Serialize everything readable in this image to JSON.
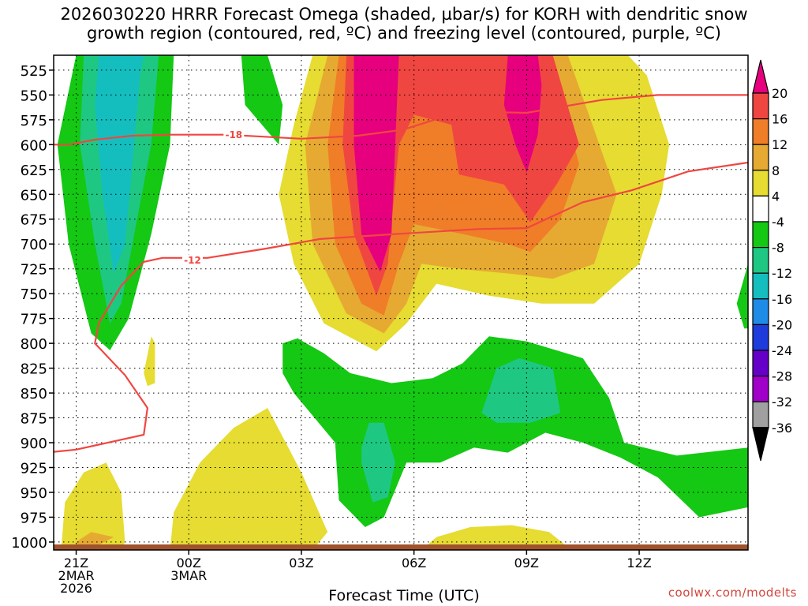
{
  "chart_data": {
    "type": "heatmap",
    "title_line1": "2026030220 HRRR Forecast Omega (shaded, µbar/s) for KORH with dendritic snow",
    "title_line2": "growth region (contoured, red, ºC) and freezing level (contoured, purple, ºC)",
    "xlabel": "Forecast Time (UTC)",
    "credit": "coolwx.com/modelts",
    "x_range_hours": [
      -0.6,
      17.9
    ],
    "y_range_hPa": [
      510,
      1008
    ],
    "y_ticks": [
      525,
      550,
      575,
      600,
      625,
      650,
      675,
      700,
      725,
      750,
      775,
      800,
      825,
      850,
      875,
      900,
      925,
      950,
      975,
      1000
    ],
    "x_ticks": [
      {
        "hour": 0,
        "lines": [
          "21Z",
          "2MAR",
          "2026"
        ]
      },
      {
        "hour": 3,
        "lines": [
          "00Z",
          "3MAR"
        ]
      },
      {
        "hour": 6,
        "lines": [
          "03Z"
        ]
      },
      {
        "hour": 9,
        "lines": [
          "06Z"
        ]
      },
      {
        "hour": 12,
        "lines": [
          "09Z"
        ]
      },
      {
        "hour": 15,
        "lines": [
          "12Z"
        ]
      }
    ],
    "colorbar": {
      "levels": [
        20,
        16,
        12,
        8,
        4,
        -4,
        -8,
        -12,
        -16,
        -20,
        -24,
        -28,
        -32,
        -36
      ],
      "colors": [
        "#e6007e",
        "#f04641",
        "#f07d28",
        "#e6aa32",
        "#e6dc32",
        "#ffffff",
        "#14c814",
        "#1ec882",
        "#14bebe",
        "#1e8ce6",
        "#1e3cdc",
        "#6400c8",
        "#a000c8",
        "#a0a0a0",
        "#000000"
      ]
    },
    "contours": [
      {
        "label": "-18",
        "color": "#f04641",
        "points": [
          [
            -0.8,
            600
          ],
          [
            -0.2,
            600
          ],
          [
            0.5,
            595
          ],
          [
            1.5,
            591
          ],
          [
            2.5,
            590
          ],
          [
            4,
            590
          ],
          [
            6,
            594
          ],
          [
            7.5,
            591
          ],
          [
            8.7,
            585
          ],
          [
            9.8,
            572
          ],
          [
            10.8,
            567
          ],
          [
            12,
            568
          ],
          [
            14,
            555
          ],
          [
            15.5,
            550
          ],
          [
            17.9,
            550
          ]
        ],
        "label_at": [
          4.2,
          590
        ]
      },
      {
        "label": "-12",
        "color": "#f04641",
        "points": [
          [
            -0.8,
            910
          ],
          [
            0,
            907
          ],
          [
            0.6,
            902
          ],
          [
            1.8,
            892
          ],
          [
            1.9,
            865
          ],
          [
            1.3,
            832
          ],
          [
            0.5,
            800
          ],
          [
            0.6,
            780
          ],
          [
            1.2,
            742
          ],
          [
            1.8,
            718
          ],
          [
            2.3,
            714
          ],
          [
            3.5,
            714
          ],
          [
            5,
            705
          ],
          [
            6.5,
            695
          ],
          [
            8.5,
            690
          ],
          [
            10.7,
            685
          ],
          [
            12,
            684
          ],
          [
            13.5,
            658
          ],
          [
            14.8,
            646
          ],
          [
            16.3,
            627
          ],
          [
            17.9,
            618
          ]
        ],
        "label_at": [
          3.1,
          716
        ]
      }
    ],
    "series": [
      {
        "name": "omega shaded regions (µbar/s)",
        "levels": [
          -8,
          -12,
          -16,
          4,
          8,
          12,
          16,
          20
        ]
      }
    ]
  }
}
